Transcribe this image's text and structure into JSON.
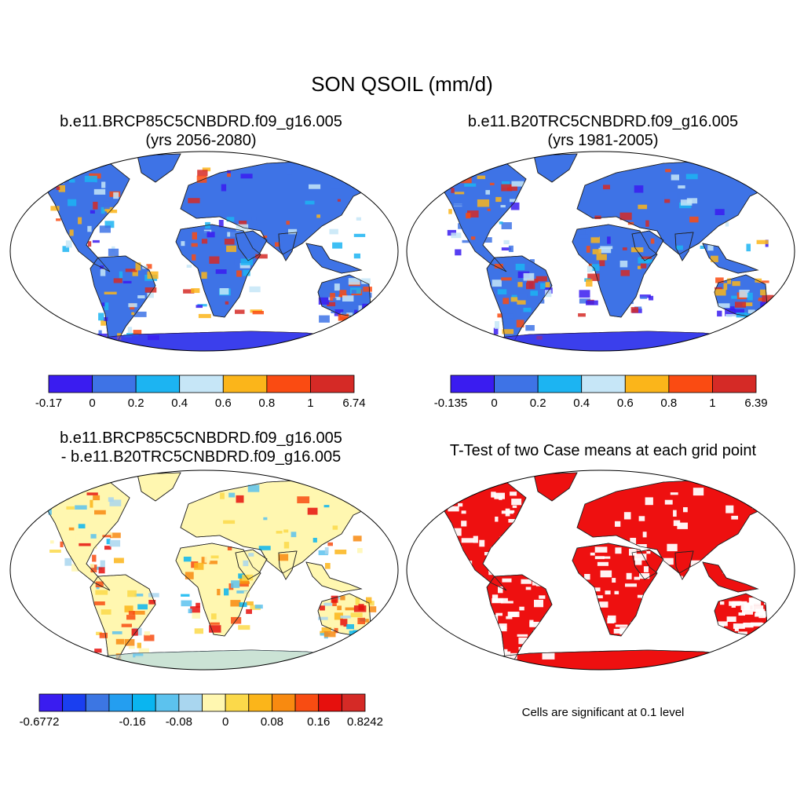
{
  "figure": {
    "title": "SON QSOIL (mm/d)",
    "note": "Cells are significant at 0.1 level"
  },
  "panels": [
    {
      "title_line1": "b.e11.BRCP85C5CNBDRD.f09_g16.005",
      "title_line2": "(yrs 2056-2080)",
      "colorbar": {
        "labels": [
          "-0.17",
          "0",
          "0.2",
          "0.4",
          "0.6",
          "0.8",
          "1",
          "6.74"
        ],
        "colors": [
          "#3a1cf0",
          "#3e73e6",
          "#1cb4f2",
          "#c6e6f7",
          "#fbb51a",
          "#fa4b12",
          "#d52a26"
        ]
      }
    },
    {
      "title_line1": "b.e11.B20TRC5CNBDRD.f09_g16.005",
      "title_line2": "(yrs 1981-2005)",
      "colorbar": {
        "labels": [
          "-0.135",
          "0",
          "0.2",
          "0.4",
          "0.6",
          "0.8",
          "1",
          "6.39"
        ],
        "colors": [
          "#3a1cf0",
          "#3e73e6",
          "#1cb4f2",
          "#c6e6f7",
          "#fbb51a",
          "#fa4b12",
          "#d52a26"
        ]
      }
    },
    {
      "title_line1": "b.e11.BRCP85C5CNBDRD.f09_g16.005",
      "title_line2": "- b.e11.B20TRC5CNBDRD.f09_g16.005",
      "colorbar": {
        "labels": [
          "-0.6772",
          "-0.16",
          "-0.08",
          "0",
          "0.08",
          "0.16",
          "0.8242"
        ],
        "label_boundaries": [
          0,
          4,
          6,
          8,
          10,
          12,
          14
        ],
        "colors": [
          "#3a1cf0",
          "#1a3ff0",
          "#3c76e3",
          "#249ef0",
          "#0ab5f0",
          "#5cc2ee",
          "#a9d6ef",
          "#fff7b0",
          "#fbd94a",
          "#fbb51a",
          "#f88a10",
          "#f84c12",
          "#e6100d",
          "#d52a26"
        ]
      }
    },
    {
      "title_line1": "T-Test of two Case means at each grid point",
      "significance_color": "#ee1010"
    }
  ]
}
